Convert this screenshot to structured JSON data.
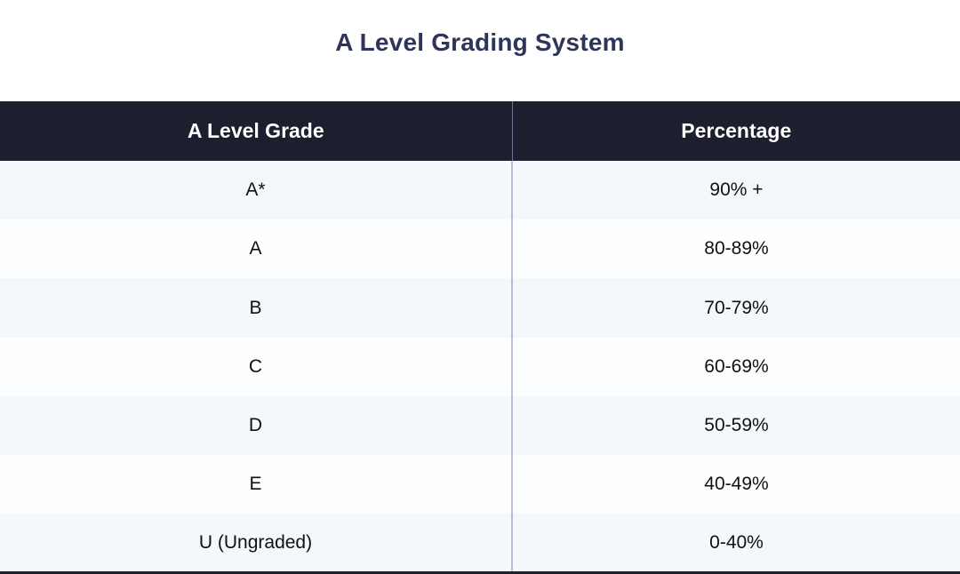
{
  "title": "A Level Grading System",
  "table": {
    "headers": [
      "A Level Grade",
      "Percentage"
    ],
    "rows": [
      {
        "grade": "A*",
        "percentage": "90% +"
      },
      {
        "grade": "A",
        "percentage": "80-89%"
      },
      {
        "grade": "B",
        "percentage": "70-79%"
      },
      {
        "grade": "C",
        "percentage": "60-69%"
      },
      {
        "grade": "D",
        "percentage": "50-59%"
      },
      {
        "grade": "E",
        "percentage": "40-49%"
      },
      {
        "grade": "U (Ungraded)",
        "percentage": "0-40%"
      }
    ]
  },
  "colors": {
    "title": "#2f3558",
    "header_background": "#1d1f2e",
    "header_text": "#ffffff",
    "row_alt_background": "#f2f8fc",
    "column_divider": "#b9bdd6"
  }
}
